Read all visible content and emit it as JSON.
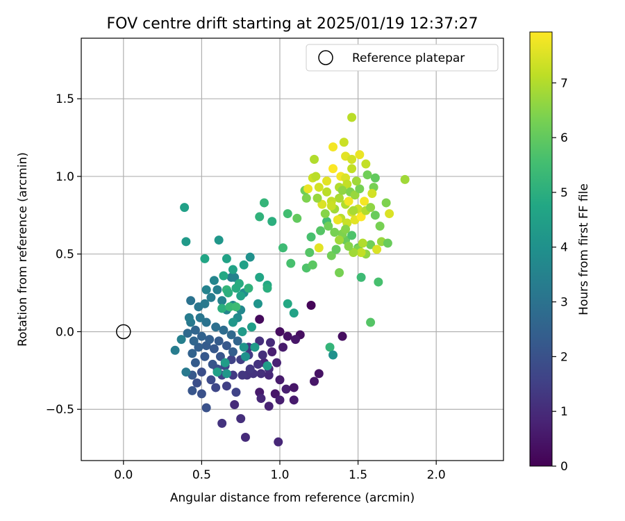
{
  "chart_data": {
    "type": "scatter",
    "title": "FOV centre drift starting at 2025/01/19 12:37:27",
    "xlabel": "Angular distance from reference (arcmin)",
    "ylabel": "Rotation from reference (arcmin)",
    "xlim": [
      -0.27,
      2.43
    ],
    "ylim": [
      -0.83,
      1.89
    ],
    "xticks": [
      0.0,
      0.5,
      1.0,
      1.5,
      2.0
    ],
    "yticks": [
      -0.5,
      0.0,
      0.5,
      1.0,
      1.5
    ],
    "xtick_labels": [
      "0.0",
      "0.5",
      "1.0",
      "1.5",
      "2.0"
    ],
    "ytick_labels": [
      "−0.5",
      "0.0",
      "0.5",
      "1.0",
      "1.5"
    ],
    "grid": true,
    "legend": {
      "placement": "top-right",
      "entries": [
        {
          "label": "Reference platepar",
          "marker": "open-circle"
        }
      ]
    },
    "reference_point": {
      "x": 0.0,
      "y": 0.0
    },
    "colorbar": {
      "label": "Hours from first FF file",
      "colormap": "viridis",
      "range": [
        0,
        7.93
      ],
      "ticks": [
        0,
        1,
        2,
        3,
        4,
        5,
        6,
        7
      ],
      "tick_labels": [
        "0",
        "1",
        "2",
        "3",
        "4",
        "5",
        "6",
        "7"
      ]
    },
    "points": [
      {
        "x": 1.2,
        "y": 0.17,
        "h": 0.1
      },
      {
        "x": 0.87,
        "y": 0.08,
        "h": 0.2
      },
      {
        "x": 1.13,
        "y": -0.02,
        "h": 0.3
      },
      {
        "x": 1.0,
        "y": 0.0,
        "h": 0.3
      },
      {
        "x": 1.05,
        "y": -0.03,
        "h": 0.4
      },
      {
        "x": 1.1,
        "y": -0.05,
        "h": 0.5
      },
      {
        "x": 1.4,
        "y": -0.03,
        "h": 0.3
      },
      {
        "x": 1.02,
        "y": -0.1,
        "h": 0.6
      },
      {
        "x": 0.95,
        "y": -0.13,
        "h": 0.7
      },
      {
        "x": 0.9,
        "y": -0.2,
        "h": 0.8
      },
      {
        "x": 1.25,
        "y": -0.27,
        "h": 0.4
      },
      {
        "x": 1.22,
        "y": -0.32,
        "h": 0.5
      },
      {
        "x": 0.87,
        "y": -0.39,
        "h": 0.6
      },
      {
        "x": 0.97,
        "y": -0.4,
        "h": 0.5
      },
      {
        "x": 1.0,
        "y": -0.31,
        "h": 0.6
      },
      {
        "x": 1.04,
        "y": -0.37,
        "h": 0.7
      },
      {
        "x": 1.09,
        "y": -0.36,
        "h": 0.5
      },
      {
        "x": 1.09,
        "y": -0.44,
        "h": 0.6
      },
      {
        "x": 1.0,
        "y": -0.44,
        "h": 0.7
      },
      {
        "x": 0.93,
        "y": -0.48,
        "h": 0.8
      },
      {
        "x": 0.99,
        "y": -0.71,
        "h": 0.9
      },
      {
        "x": 0.78,
        "y": -0.68,
        "h": 1.0
      },
      {
        "x": 0.75,
        "y": -0.56,
        "h": 1.1
      },
      {
        "x": 0.63,
        "y": -0.59,
        "h": 1.2
      },
      {
        "x": 0.88,
        "y": -0.43,
        "h": 0.9
      },
      {
        "x": 0.71,
        "y": -0.47,
        "h": 1.0
      },
      {
        "x": 0.93,
        "y": -0.28,
        "h": 0.9
      },
      {
        "x": 0.98,
        "y": -0.2,
        "h": 0.8
      },
      {
        "x": 0.93,
        "y": -0.24,
        "h": 1.0
      },
      {
        "x": 0.88,
        "y": -0.27,
        "h": 1.1
      },
      {
        "x": 0.83,
        "y": -0.27,
        "h": 1.2
      },
      {
        "x": 0.79,
        "y": -0.28,
        "h": 1.2
      },
      {
        "x": 0.76,
        "y": -0.28,
        "h": 1.3
      },
      {
        "x": 0.7,
        "y": -0.28,
        "h": 1.4
      },
      {
        "x": 0.81,
        "y": -0.24,
        "h": 1.3
      },
      {
        "x": 0.86,
        "y": -0.21,
        "h": 1.2
      },
      {
        "x": 0.89,
        "y": -0.15,
        "h": 1.1
      },
      {
        "x": 0.94,
        "y": -0.07,
        "h": 1.0
      },
      {
        "x": 0.87,
        "y": -0.06,
        "h": 1.1
      },
      {
        "x": 0.8,
        "y": -0.1,
        "h": 1.3
      },
      {
        "x": 0.8,
        "y": -0.15,
        "h": 1.4
      },
      {
        "x": 0.75,
        "y": -0.18,
        "h": 1.5
      },
      {
        "x": 0.69,
        "y": -0.18,
        "h": 1.6
      },
      {
        "x": 0.65,
        "y": -0.22,
        "h": 1.7
      },
      {
        "x": 0.63,
        "y": -0.28,
        "h": 1.6
      },
      {
        "x": 0.66,
        "y": -0.35,
        "h": 1.5
      },
      {
        "x": 0.72,
        "y": -0.39,
        "h": 1.6
      },
      {
        "x": 0.59,
        "y": -0.36,
        "h": 1.7
      },
      {
        "x": 0.56,
        "y": -0.31,
        "h": 1.8
      },
      {
        "x": 0.5,
        "y": -0.26,
        "h": 1.9
      },
      {
        "x": 0.47,
        "y": -0.33,
        "h": 1.9
      },
      {
        "x": 0.5,
        "y": -0.4,
        "h": 2.0
      },
      {
        "x": 0.44,
        "y": -0.38,
        "h": 2.1
      },
      {
        "x": 0.53,
        "y": -0.49,
        "h": 2.0
      },
      {
        "x": 0.44,
        "y": -0.28,
        "h": 2.2
      },
      {
        "x": 0.46,
        "y": -0.2,
        "h": 2.3
      },
      {
        "x": 0.52,
        "y": -0.16,
        "h": 2.2
      },
      {
        "x": 0.57,
        "y": -0.21,
        "h": 2.1
      },
      {
        "x": 0.6,
        "y": -0.24,
        "h": 2.0
      },
      {
        "x": 0.62,
        "y": -0.16,
        "h": 2.1
      },
      {
        "x": 0.58,
        "y": -0.11,
        "h": 2.2
      },
      {
        "x": 0.53,
        "y": -0.09,
        "h": 2.3
      },
      {
        "x": 0.48,
        "y": -0.1,
        "h": 2.4
      },
      {
        "x": 0.44,
        "y": -0.14,
        "h": 2.5
      },
      {
        "x": 0.45,
        "y": -0.06,
        "h": 2.6
      },
      {
        "x": 0.41,
        "y": -0.01,
        "h": 2.7
      },
      {
        "x": 0.46,
        "y": 0.01,
        "h": 2.6
      },
      {
        "x": 0.5,
        "y": -0.03,
        "h": 2.5
      },
      {
        "x": 0.55,
        "y": -0.05,
        "h": 2.4
      },
      {
        "x": 0.61,
        "y": -0.06,
        "h": 2.3
      },
      {
        "x": 0.66,
        "y": -0.09,
        "h": 2.2
      },
      {
        "x": 0.7,
        "y": -0.13,
        "h": 2.4
      },
      {
        "x": 0.73,
        "y": -0.06,
        "h": 2.6
      },
      {
        "x": 0.69,
        "y": -0.02,
        "h": 2.7
      },
      {
        "x": 0.64,
        "y": 0.01,
        "h": 2.8
      },
      {
        "x": 0.59,
        "y": 0.03,
        "h": 2.9
      },
      {
        "x": 0.53,
        "y": 0.06,
        "h": 3.0
      },
      {
        "x": 0.49,
        "y": 0.09,
        "h": 3.1
      },
      {
        "x": 0.43,
        "y": 0.06,
        "h": 3.2
      },
      {
        "x": 0.42,
        "y": 0.09,
        "h": 3.3
      },
      {
        "x": 0.33,
        "y": -0.12,
        "h": 3.3
      },
      {
        "x": 0.4,
        "y": -0.26,
        "h": 3.2
      },
      {
        "x": 0.37,
        "y": -0.05,
        "h": 3.4
      },
      {
        "x": 0.43,
        "y": 0.2,
        "h": 3.0
      },
      {
        "x": 0.48,
        "y": 0.16,
        "h": 3.1
      },
      {
        "x": 0.52,
        "y": 0.18,
        "h": 3.2
      },
      {
        "x": 0.56,
        "y": 0.22,
        "h": 3.3
      },
      {
        "x": 0.6,
        "y": 0.27,
        "h": 3.4
      },
      {
        "x": 0.53,
        "y": 0.27,
        "h": 3.5
      },
      {
        "x": 0.58,
        "y": 0.33,
        "h": 3.6
      },
      {
        "x": 0.63,
        "y": 0.2,
        "h": 3.5
      },
      {
        "x": 0.66,
        "y": 0.14,
        "h": 3.6
      },
      {
        "x": 0.7,
        "y": 0.17,
        "h": 3.7
      },
      {
        "x": 0.73,
        "y": 0.09,
        "h": 3.8
      },
      {
        "x": 0.75,
        "y": 0.14,
        "h": 3.7
      },
      {
        "x": 0.69,
        "y": 0.35,
        "h": 3.4
      },
      {
        "x": 0.71,
        "y": 0.35,
        "h": 3.5
      },
      {
        "x": 0.77,
        "y": 0.25,
        "h": 3.9
      },
      {
        "x": 0.81,
        "y": 0.48,
        "h": 4.0
      },
      {
        "x": 0.86,
        "y": 0.18,
        "h": 4.1
      },
      {
        "x": 0.7,
        "y": 0.06,
        "h": 4.2
      },
      {
        "x": 0.76,
        "y": 0.0,
        "h": 4.3
      },
      {
        "x": 0.82,
        "y": 0.03,
        "h": 4.4
      },
      {
        "x": 0.77,
        "y": -0.1,
        "h": 4.1
      },
      {
        "x": 0.84,
        "y": -0.1,
        "h": 4.3
      },
      {
        "x": 0.78,
        "y": -0.16,
        "h": 4.0
      },
      {
        "x": 0.92,
        "y": -0.22,
        "h": 4.4
      },
      {
        "x": 0.6,
        "y": -0.26,
        "h": 4.5
      },
      {
        "x": 0.65,
        "y": -0.2,
        "h": 4.4
      },
      {
        "x": 0.66,
        "y": -0.27,
        "h": 4.2
      },
      {
        "x": 0.61,
        "y": 0.59,
        "h": 4.2
      },
      {
        "x": 0.4,
        "y": 0.58,
        "h": 4.3
      },
      {
        "x": 0.39,
        "y": 0.8,
        "h": 4.5
      },
      {
        "x": 0.52,
        "y": 0.47,
        "h": 4.7
      },
      {
        "x": 0.66,
        "y": 0.47,
        "h": 4.6
      },
      {
        "x": 0.7,
        "y": 0.4,
        "h": 4.6
      },
      {
        "x": 0.77,
        "y": 0.43,
        "h": 4.5
      },
      {
        "x": 0.64,
        "y": 0.36,
        "h": 4.8
      },
      {
        "x": 0.74,
        "y": 0.31,
        "h": 4.9
      },
      {
        "x": 0.87,
        "y": 0.35,
        "h": 4.7
      },
      {
        "x": 0.92,
        "y": 0.3,
        "h": 4.8
      },
      {
        "x": 0.92,
        "y": 0.28,
        "h": 5.0
      },
      {
        "x": 0.66,
        "y": 0.27,
        "h": 5.2
      },
      {
        "x": 0.8,
        "y": 0.28,
        "h": 5.1
      },
      {
        "x": 0.72,
        "y": 0.28,
        "h": 4.9
      },
      {
        "x": 0.67,
        "y": 0.25,
        "h": 5.0
      },
      {
        "x": 0.63,
        "y": 0.15,
        "h": 5.0
      },
      {
        "x": 0.75,
        "y": 0.23,
        "h": 4.6
      },
      {
        "x": 0.68,
        "y": 0.16,
        "h": 5.3
      },
      {
        "x": 0.72,
        "y": 0.16,
        "h": 5.4
      },
      {
        "x": 1.05,
        "y": 0.18,
        "h": 4.8
      },
      {
        "x": 1.09,
        "y": 0.12,
        "h": 4.6
      },
      {
        "x": 0.87,
        "y": 0.74,
        "h": 5.1
      },
      {
        "x": 0.9,
        "y": 0.83,
        "h": 5.2
      },
      {
        "x": 0.95,
        "y": 0.71,
        "h": 5.0
      },
      {
        "x": 1.05,
        "y": 0.76,
        "h": 5.5
      },
      {
        "x": 1.11,
        "y": 0.73,
        "h": 6.0
      },
      {
        "x": 1.02,
        "y": 0.54,
        "h": 5.4
      },
      {
        "x": 1.07,
        "y": 0.44,
        "h": 5.6
      },
      {
        "x": 1.17,
        "y": 0.41,
        "h": 5.7
      },
      {
        "x": 1.19,
        "y": 0.51,
        "h": 5.8
      },
      {
        "x": 1.21,
        "y": 0.43,
        "h": 5.9
      },
      {
        "x": 1.2,
        "y": 0.61,
        "h": 5.6
      },
      {
        "x": 1.26,
        "y": 0.65,
        "h": 5.8
      },
      {
        "x": 1.3,
        "y": 0.71,
        "h": 5.5
      },
      {
        "x": 1.33,
        "y": 0.49,
        "h": 6.2
      },
      {
        "x": 1.38,
        "y": 0.38,
        "h": 6.3
      },
      {
        "x": 1.36,
        "y": 0.53,
        "h": 6.0
      },
      {
        "x": 1.42,
        "y": 0.59,
        "h": 6.1
      },
      {
        "x": 1.46,
        "y": 0.62,
        "h": 5.7
      },
      {
        "x": 1.5,
        "y": 0.54,
        "h": 6.0
      },
      {
        "x": 1.52,
        "y": 0.35,
        "h": 5.4
      },
      {
        "x": 1.58,
        "y": 0.06,
        "h": 5.8
      },
      {
        "x": 1.63,
        "y": 0.32,
        "h": 5.6
      },
      {
        "x": 1.32,
        "y": -0.1,
        "h": 5.2
      },
      {
        "x": 1.34,
        "y": -0.15,
        "h": 4.0
      },
      {
        "x": 1.5,
        "y": 0.53,
        "h": 6.4
      },
      {
        "x": 1.55,
        "y": 0.5,
        "h": 6.6
      },
      {
        "x": 1.58,
        "y": 0.56,
        "h": 6.2
      },
      {
        "x": 1.65,
        "y": 0.58,
        "h": 6.7
      },
      {
        "x": 1.69,
        "y": 0.57,
        "h": 6.1
      },
      {
        "x": 1.64,
        "y": 0.68,
        "h": 6.3
      },
      {
        "x": 1.62,
        "y": 0.53,
        "h": 7.5
      },
      {
        "x": 1.52,
        "y": 0.51,
        "h": 7.2
      },
      {
        "x": 1.53,
        "y": 0.57,
        "h": 7.0
      },
      {
        "x": 1.47,
        "y": 0.51,
        "h": 6.8
      },
      {
        "x": 1.44,
        "y": 0.55,
        "h": 6.5
      },
      {
        "x": 1.4,
        "y": 0.63,
        "h": 6.4
      },
      {
        "x": 1.35,
        "y": 0.64,
        "h": 6.3
      },
      {
        "x": 1.31,
        "y": 0.68,
        "h": 6.2
      },
      {
        "x": 1.29,
        "y": 0.76,
        "h": 6.5
      },
      {
        "x": 1.35,
        "y": 0.79,
        "h": 6.8
      },
      {
        "x": 1.39,
        "y": 0.73,
        "h": 7.1
      },
      {
        "x": 1.43,
        "y": 0.7,
        "h": 7.3
      },
      {
        "x": 1.48,
        "y": 0.72,
        "h": 7.6
      },
      {
        "x": 1.46,
        "y": 0.77,
        "h": 7.4
      },
      {
        "x": 1.42,
        "y": 0.82,
        "h": 7.0
      },
      {
        "x": 1.38,
        "y": 0.86,
        "h": 6.9
      },
      {
        "x": 1.33,
        "y": 0.84,
        "h": 7.2
      },
      {
        "x": 1.27,
        "y": 0.82,
        "h": 7.5
      },
      {
        "x": 1.24,
        "y": 0.86,
        "h": 6.7
      },
      {
        "x": 1.17,
        "y": 0.86,
        "h": 6.4
      },
      {
        "x": 1.16,
        "y": 0.91,
        "h": 6.2
      },
      {
        "x": 1.18,
        "y": 0.92,
        "h": 7.7
      },
      {
        "x": 1.21,
        "y": 0.99,
        "h": 7.3
      },
      {
        "x": 1.23,
        "y": 1.0,
        "h": 7.1
      },
      {
        "x": 1.25,
        "y": 0.93,
        "h": 7.4
      },
      {
        "x": 1.22,
        "y": 1.11,
        "h": 7.0
      },
      {
        "x": 1.3,
        "y": 0.97,
        "h": 7.6
      },
      {
        "x": 1.34,
        "y": 1.05,
        "h": 7.9
      },
      {
        "x": 1.39,
        "y": 1.0,
        "h": 7.8
      },
      {
        "x": 1.42,
        "y": 0.99,
        "h": 7.5
      },
      {
        "x": 1.43,
        "y": 0.95,
        "h": 7.2
      },
      {
        "x": 1.38,
        "y": 0.93,
        "h": 7.0
      },
      {
        "x": 1.4,
        "y": 0.91,
        "h": 6.6
      },
      {
        "x": 1.45,
        "y": 0.9,
        "h": 6.4
      },
      {
        "x": 1.48,
        "y": 0.88,
        "h": 6.7
      },
      {
        "x": 1.51,
        "y": 0.92,
        "h": 6.3
      },
      {
        "x": 1.49,
        "y": 0.97,
        "h": 6.8
      },
      {
        "x": 1.46,
        "y": 1.05,
        "h": 7.2
      },
      {
        "x": 1.42,
        "y": 1.13,
        "h": 7.6
      },
      {
        "x": 1.41,
        "y": 1.22,
        "h": 7.3
      },
      {
        "x": 1.34,
        "y": 1.19,
        "h": 7.8
      },
      {
        "x": 1.46,
        "y": 1.11,
        "h": 7.4
      },
      {
        "x": 1.51,
        "y": 1.14,
        "h": 7.7
      },
      {
        "x": 1.55,
        "y": 1.08,
        "h": 7.2
      },
      {
        "x": 1.56,
        "y": 1.01,
        "h": 6.2
      },
      {
        "x": 1.61,
        "y": 0.99,
        "h": 6.0
      },
      {
        "x": 1.6,
        "y": 0.93,
        "h": 6.3
      },
      {
        "x": 1.54,
        "y": 0.84,
        "h": 7.8
      },
      {
        "x": 1.5,
        "y": 0.79,
        "h": 7.3
      },
      {
        "x": 1.47,
        "y": 0.78,
        "h": 6.9
      },
      {
        "x": 1.52,
        "y": 0.74,
        "h": 7.9
      },
      {
        "x": 1.55,
        "y": 0.78,
        "h": 7.0
      },
      {
        "x": 1.58,
        "y": 0.8,
        "h": 6.6
      },
      {
        "x": 1.61,
        "y": 0.75,
        "h": 6.1
      },
      {
        "x": 1.68,
        "y": 0.83,
        "h": 6.4
      },
      {
        "x": 1.7,
        "y": 0.76,
        "h": 7.5
      },
      {
        "x": 1.8,
        "y": 0.98,
        "h": 6.8
      },
      {
        "x": 1.46,
        "y": 1.38,
        "h": 7.1
      },
      {
        "x": 1.59,
        "y": 0.89,
        "h": 7.4
      },
      {
        "x": 1.44,
        "y": 0.84,
        "h": 7.8
      },
      {
        "x": 1.37,
        "y": 0.72,
        "h": 7.7
      },
      {
        "x": 1.33,
        "y": 0.81,
        "h": 7.3
      },
      {
        "x": 1.3,
        "y": 0.9,
        "h": 7.1
      },
      {
        "x": 1.25,
        "y": 0.54,
        "h": 7.6
      },
      {
        "x": 1.38,
        "y": 0.59,
        "h": 6.8
      },
      {
        "x": 1.42,
        "y": 0.66,
        "h": 6.5
      }
    ]
  }
}
